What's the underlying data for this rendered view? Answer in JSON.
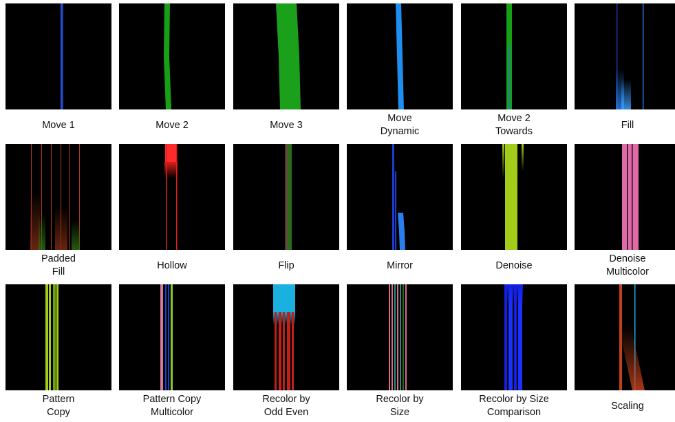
{
  "panels": [
    {
      "title_lines": [
        "Move 1"
      ],
      "color": "#1e4fd6",
      "palette": [
        "#1e4fd6"
      ]
    },
    {
      "title_lines": [
        "Move 2"
      ],
      "color": "#16a016",
      "palette": [
        "#16a016"
      ]
    },
    {
      "title_lines": [
        "Move 3"
      ],
      "color": "#1aa01a",
      "palette": [
        "#1aa01a"
      ]
    },
    {
      "title_lines": [
        "Move",
        "Dynamic"
      ],
      "color": "#1e8ff0",
      "palette": [
        "#1e8ff0"
      ]
    },
    {
      "title_lines": [
        "Move 2",
        "Towards"
      ],
      "color": "#16a016",
      "palette": [
        "#16a016",
        "#2a6fd8"
      ]
    },
    {
      "title_lines": [
        "Fill"
      ],
      "color": "#2a6fe0",
      "palette": [
        "#1b3fae",
        "#2a7ef0",
        "#3aa0ff"
      ]
    },
    {
      "title_lines": [
        "Padded",
        "Fill"
      ],
      "color": "#b3391a",
      "palette": [
        "#b3391a",
        "#7a2a12",
        "#2d6a14"
      ]
    },
    {
      "title_lines": [
        "Hollow"
      ],
      "color": "#e0201a",
      "palette": [
        "#e0201a",
        "#ff2a2a"
      ]
    },
    {
      "title_lines": [
        "Flip"
      ],
      "color": "#2a6a1a",
      "palette": [
        "#d86a8a",
        "#2a6a1a"
      ]
    },
    {
      "title_lines": [
        "Mirror"
      ],
      "color": "#1b3fd6",
      "palette": [
        "#1b3fd6",
        "#2a7ef0"
      ]
    },
    {
      "title_lines": [
        "Denoise"
      ],
      "color": "#a3cc1a",
      "palette": [
        "#a3cc1a"
      ]
    },
    {
      "title_lines": [
        "Denoise",
        "Multicolor"
      ],
      "color": "#e06aa8",
      "palette": [
        "#e06aa8",
        "#111111"
      ]
    },
    {
      "title_lines": [
        "Pattern",
        "Copy"
      ],
      "color": "#a3cc1a",
      "palette": [
        "#a3cc1a",
        "#6aa01a"
      ]
    },
    {
      "title_lines": [
        "Pattern Copy",
        "Multicolor"
      ],
      "color": "#d8789a",
      "palette": [
        "#d8789a",
        "#1b3fd6",
        "#8acc1a"
      ]
    },
    {
      "title_lines": [
        "Recolor by",
        "Odd Even"
      ],
      "color": "#1ab0e0",
      "palette": [
        "#1ab0e0",
        "#c0201a"
      ]
    },
    {
      "title_lines": [
        "Recolor by",
        "Size"
      ],
      "color": "#d86a8a",
      "palette": [
        "#d86a8a",
        "#2a8a8a",
        "#2a6a1a"
      ]
    },
    {
      "title_lines": [
        "Recolor by Size",
        "Comparison"
      ],
      "color": "#1420e0",
      "palette": [
        "#1420e0",
        "#1a30ff"
      ]
    },
    {
      "title_lines": [
        "Scaling"
      ],
      "color": "#c0401a",
      "palette": [
        "#c0401a",
        "#1ab0e0"
      ]
    }
  ]
}
